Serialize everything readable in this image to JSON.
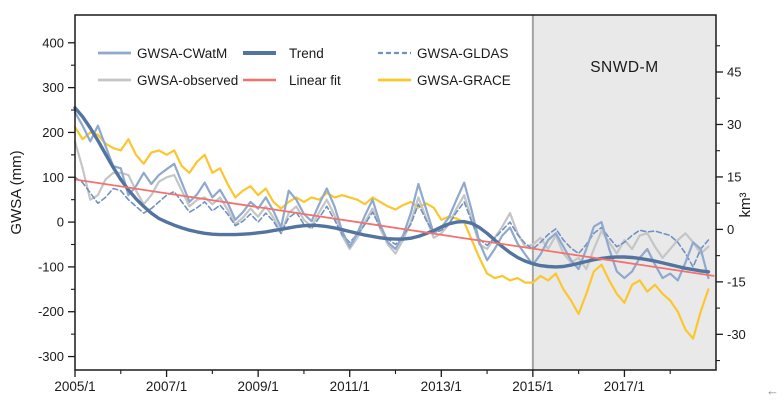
{
  "figure": {
    "shaded_label": "SNWD-M",
    "left_axis_title": "GWSA (mm)",
    "right_axis_title": "km³"
  },
  "artifacts": {
    "arrow_glyph": "←"
  },
  "colors": {
    "frame": "#1a1a1a",
    "text": "#1a1a1a",
    "shaded_fill": "#e9e9e9",
    "shaded_border": "#a3a3a3",
    "cwatm": "#8fa9ce",
    "observed": "#c3c5c7",
    "trend": "#52749f",
    "linear_fit": "#f2726f",
    "gldas": "#6f92c1",
    "grace": "#fcc62f"
  },
  "chart_data": {
    "type": "line",
    "title": "",
    "xlabel": "",
    "ylabel_left": "GWSA (mm)",
    "ylabel_right": "km³",
    "grid": false,
    "legend_position": "top-left-inside",
    "x_axis": {
      "min": 2005.0,
      "max": 2019.0,
      "major_tick_years": [
        2005,
        2007,
        2009,
        2011,
        2013,
        2015,
        2017
      ],
      "major_tick_labels": [
        "2005/1",
        "2007/1",
        "2009/1",
        "2011/1",
        "2013/1",
        "2015/1",
        "2017/1"
      ],
      "minor_tick_years": [
        2006,
        2008,
        2010,
        2012,
        2014,
        2016,
        2018
      ]
    },
    "left_axis": {
      "title": "GWSA (mm)",
      "min": -330,
      "max": 462,
      "major_ticks": [
        400,
        300,
        200,
        100,
        0,
        -100,
        -200,
        -300
      ],
      "minor_ticks": [
        350,
        250,
        150,
        50,
        -50,
        -150,
        -250
      ]
    },
    "right_axis": {
      "title": "km³",
      "min": -40.2,
      "max": 61.3,
      "major_ticks": [
        45,
        30,
        15,
        0,
        -15,
        -30
      ],
      "minor_ticks": [
        52.5,
        37.5,
        22.5,
        7.5,
        -7.5,
        -22.5,
        -37.5
      ]
    },
    "shaded_region": {
      "label": "SNWD-M",
      "x_start": 2015.0,
      "x_end": 2019.0
    },
    "sampling": {
      "x_start_year": 2005,
      "x_start_month": 1,
      "step_months": 2,
      "points": 84
    },
    "series": [
      {
        "name": "GWSA-GRACE",
        "color_key": "grace",
        "width": 2.2,
        "dash": null,
        "values": [
          212,
          185,
          200,
          195,
          175,
          165,
          160,
          185,
          150,
          130,
          155,
          160,
          150,
          160,
          125,
          110,
          135,
          150,
          110,
          120,
          85,
          55,
          70,
          80,
          60,
          75,
          45,
          30,
          45,
          55,
          45,
          55,
          50,
          65,
          55,
          60,
          55,
          50,
          40,
          55,
          45,
          35,
          28,
          38,
          45,
          32,
          42,
          32,
          5,
          12,
          8,
          0,
          -40,
          -80,
          -115,
          -125,
          -120,
          -130,
          -125,
          -135,
          -135,
          -120,
          -130,
          -115,
          -150,
          -175,
          -205,
          -160,
          -110,
          -95,
          -130,
          -160,
          -180,
          -140,
          -130,
          -155,
          -140,
          -160,
          -175,
          -200,
          -240,
          -260,
          -200,
          -150
        ]
      },
      {
        "name": "GWSA-observed",
        "color_key": "observed",
        "width": 2.2,
        "dash": null,
        "values": [
          180,
          120,
          50,
          60,
          95,
          110,
          110,
          105,
          70,
          40,
          60,
          90,
          100,
          105,
          70,
          35,
          50,
          55,
          40,
          55,
          28,
          -5,
          10,
          30,
          12,
          35,
          10,
          -25,
          20,
          35,
          5,
          -10,
          22,
          50,
          15,
          -30,
          -60,
          -35,
          0,
          30,
          -15,
          -50,
          -70,
          -40,
          0,
          55,
          10,
          -35,
          -25,
          -5,
          30,
          60,
          5,
          -50,
          -60,
          -35,
          -10,
          20,
          -25,
          -55,
          -50,
          -35,
          -60,
          -30,
          -70,
          -90,
          -80,
          -105,
          -60,
          -20,
          -45,
          -70,
          -40,
          -60,
          -30,
          -25,
          -55,
          -80,
          -60,
          -40,
          -25,
          -45,
          -70,
          -55
        ]
      },
      {
        "name": "GWSA-GLDAS",
        "color_key": "gldas",
        "width": 1.6,
        "dash": "5 3",
        "values": [
          100,
          88,
          65,
          42,
          55,
          75,
          70,
          50,
          35,
          20,
          30,
          45,
          60,
          68,
          45,
          22,
          32,
          45,
          25,
          38,
          18,
          -8,
          2,
          18,
          0,
          20,
          2,
          -25,
          10,
          22,
          -5,
          -15,
          10,
          35,
          5,
          -28,
          -45,
          -28,
          -5,
          22,
          -12,
          -38,
          -50,
          -30,
          -5,
          40,
          5,
          -25,
          -18,
          -5,
          22,
          45,
          0,
          -38,
          -52,
          -35,
          -18,
          0,
          -28,
          -48,
          -60,
          -45,
          -28,
          -15,
          -40,
          -58,
          -70,
          -50,
          -25,
          -12,
          -35,
          -55,
          -45,
          -30,
          -18,
          -22,
          -20,
          -25,
          -30,
          -45,
          -70,
          -100,
          -60,
          -40
        ]
      },
      {
        "name": "GWSA-CWatM",
        "color_key": "cwatm",
        "width": 2.2,
        "dash": null,
        "values": [
          245,
          215,
          180,
          215,
          170,
          125,
          120,
          60,
          80,
          110,
          85,
          105,
          118,
          130,
          88,
          45,
          62,
          88,
          55,
          72,
          43,
          5,
          22,
          45,
          30,
          55,
          25,
          -12,
          70,
          50,
          18,
          2,
          40,
          75,
          35,
          -20,
          -55,
          -25,
          15,
          50,
          -5,
          -45,
          -60,
          -30,
          20,
          85,
          30,
          -25,
          -12,
          10,
          50,
          88,
          25,
          -45,
          -85,
          -60,
          -30,
          -12,
          -48,
          -72,
          -95,
          -72,
          -40,
          -25,
          -55,
          -85,
          -105,
          -60,
          -10,
          0,
          -60,
          -110,
          -125,
          -110,
          -80,
          -60,
          -95,
          -125,
          -115,
          -130,
          -90,
          -45,
          -60,
          -125
        ]
      },
      {
        "name": "Trend",
        "color_key": "trend",
        "width": 3.4,
        "dash": null,
        "values": [
          255,
          235,
          210,
          182,
          152,
          122,
          95,
          72,
          52,
          35,
          20,
          8,
          0,
          -7,
          -13,
          -18,
          -22,
          -25,
          -27,
          -28,
          -28,
          -28,
          -27,
          -26,
          -24,
          -22,
          -19,
          -16,
          -13,
          -10,
          -8,
          -7,
          -8,
          -10,
          -13,
          -17,
          -21,
          -25,
          -29,
          -32,
          -35,
          -37,
          -38,
          -38,
          -36,
          -32,
          -26,
          -19,
          -11,
          -4,
          0,
          1,
          -3,
          -12,
          -25,
          -40,
          -55,
          -68,
          -79,
          -87,
          -93,
          -97,
          -99,
          -100,
          -99,
          -96,
          -92,
          -88,
          -84,
          -81,
          -79,
          -78,
          -78,
          -79,
          -81,
          -84,
          -87,
          -91,
          -95,
          -99,
          -103,
          -106,
          -109,
          -111
        ]
      },
      {
        "name": "Linear fit",
        "color_key": "linear_fit",
        "width": 1.8,
        "dash": null,
        "x": [
          2005.0,
          2018.95
        ],
        "values": [
          95,
          -120
        ]
      }
    ],
    "legend": {
      "rows": [
        [
          "GWSA-CWatM",
          "Trend",
          "GWSA-GLDAS"
        ],
        [
          "GWSA-observed",
          "Linear fit",
          "GWSA-GRACE"
        ]
      ]
    }
  }
}
